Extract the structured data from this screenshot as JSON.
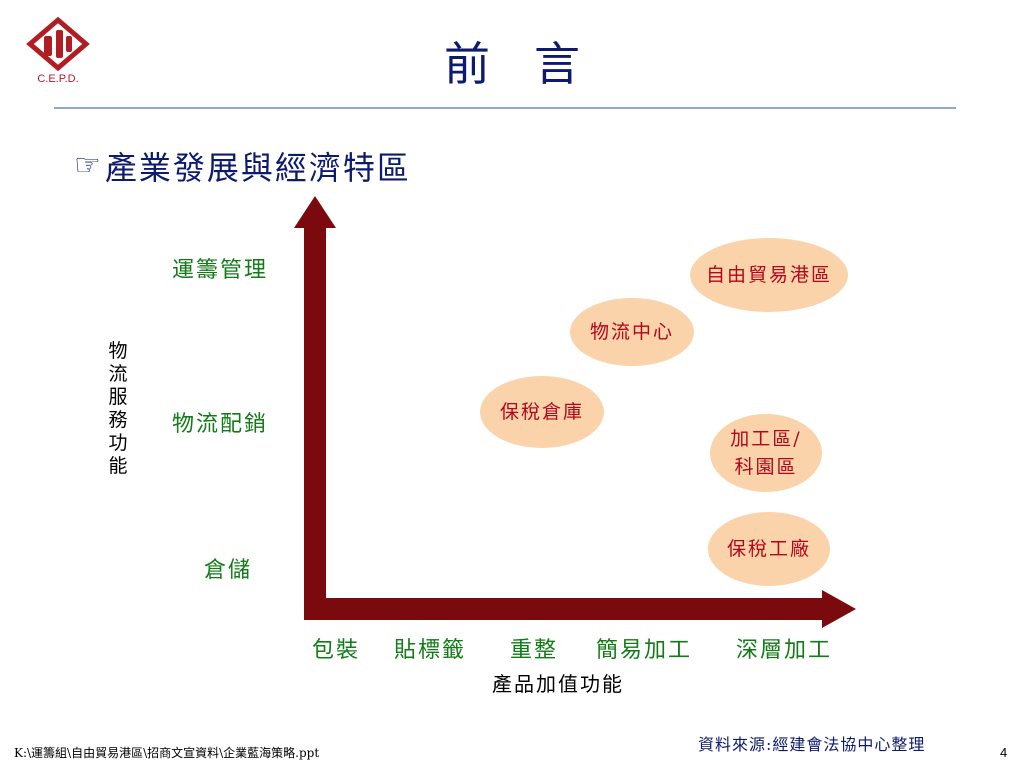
{
  "logo": {
    "text": "C.E.P.D.",
    "icon": "cepd-logo"
  },
  "title": "前言",
  "subtitle": {
    "icon": "pointing-hand-icon",
    "glyph": "☞",
    "text": "產業發展與經濟特區"
  },
  "diagram": {
    "y_axis": {
      "title": "物流服務功能",
      "levels": [
        "運籌管理",
        "物流配銷",
        "倉儲"
      ]
    },
    "x_axis": {
      "title": "產品加值功能",
      "levels": [
        "包裝",
        "貼標籤",
        "重整",
        "簡易加工",
        "深層加工"
      ]
    },
    "zones": [
      {
        "id": "ftz",
        "label": "自由貿易港區"
      },
      {
        "id": "logistics",
        "label": "物流中心"
      },
      {
        "id": "bonded-warehouse",
        "label": "保稅倉庫"
      },
      {
        "id": "epz",
        "label_line1": "加工區/",
        "label_line2": "科園區"
      },
      {
        "id": "bonded-factory",
        "label": "保稅工廠"
      }
    ],
    "colors": {
      "axis": "#7a0a0e",
      "label_green": "#127a16",
      "bubble_fill": "#fbd3aa",
      "bubble_text": "#b2061b"
    }
  },
  "footer": {
    "source": "資料來源:經建會法協中心整理",
    "filepath": "K:\\運籌組\\自由貿易港區\\招商文宣資料\\企業藍海策略.ppt",
    "page_number": "4"
  }
}
